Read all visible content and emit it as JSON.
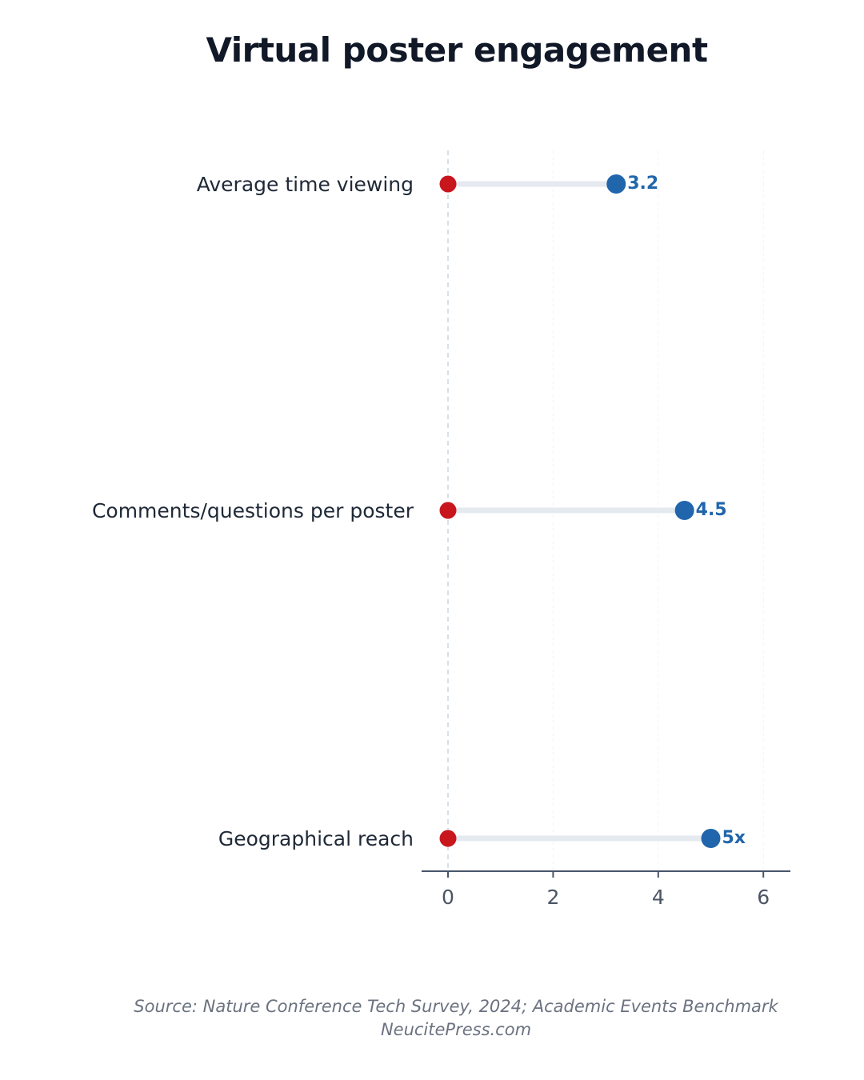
{
  "chart_data": {
    "type": "dumbbell",
    "title": "Virtual poster engagement",
    "categories": [
      "Average time viewing",
      "Comments/questions per poster",
      "Geographical reach"
    ],
    "series": [
      {
        "values": [
          0,
          0,
          0
        ],
        "color": "#c8161d"
      },
      {
        "values": [
          3.2,
          4.5,
          5
        ],
        "color": "#2166ac"
      }
    ],
    "value_labels": [
      "3.2",
      "4.5",
      "5x"
    ],
    "xlim": [
      -1,
      6.5
    ],
    "xticks": [
      0,
      2,
      4,
      6
    ],
    "xtick_labels": [
      "0",
      "2",
      "4",
      "6"
    ],
    "grid": true,
    "colors": {
      "start_dot": "#c8161d",
      "end_dot": "#2166ac",
      "connector": "#e5e9f0",
      "axis": "#475569",
      "grid": "#eef2f7",
      "zero_line": "#cbd5e1"
    }
  },
  "footer": {
    "source": "Source: Nature Conference Tech Survey, 2024; Academic Events Benchmark",
    "site": "NeucitePress.com"
  }
}
